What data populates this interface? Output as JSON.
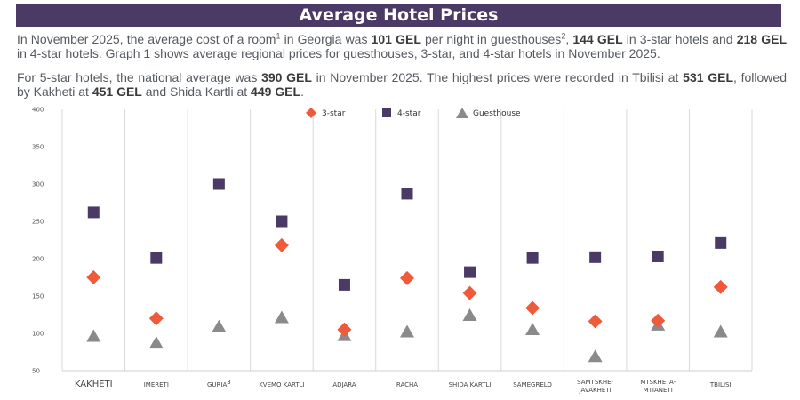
{
  "header": {
    "title": "Average Hotel Prices"
  },
  "text": {
    "p1": {
      "a": "In November 2025, the average cost of a room",
      "sup1": "1",
      "b": " in Georgia was ",
      "v1": "101 GEL",
      "c": " per night in guesthouses",
      "sup2": "2",
      "d": ", ",
      "v2": "144 GEL",
      "e": " in 3-star hotels and ",
      "v3": "218 GEL",
      "f": " in 4-star hotels. Graph 1 shows average regional prices for guesthouses, 3-star, and 4-star hotels in November 2025."
    },
    "p2": {
      "a": "For 5-star hotels, the national average was ",
      "v1": "390 GEL",
      "b": " in November 2025. The highest prices were recorded in Tbilisi at ",
      "v2": "531 GEL",
      "c": ", followed by Kakheti at ",
      "v3": "451 GEL",
      "d": " and Shida Kartli at ",
      "v4": "449 GEL",
      "e": "."
    }
  },
  "chart_data": {
    "type": "scatter",
    "title": "",
    "xlabel": "",
    "ylabel": "",
    "ylim": [
      50,
      400
    ],
    "yticks": [
      50,
      100,
      150,
      200,
      250,
      300,
      350,
      400
    ],
    "grid": "vertical separators",
    "legend_position": "top-center",
    "categories": [
      "KAKHETI",
      "IMERETI",
      "GURIA",
      "KVEMO KARTLI",
      "ADJARA",
      "RACHA",
      "SHIDA KARTLI",
      "SAMEGRELO",
      "SAMTSKHE-JAVAKHETI",
      "MTSKHETA-MTIANETI",
      "TBILISI"
    ],
    "category_footnotes": {
      "GURIA": "3"
    },
    "series": [
      {
        "name": "3-star",
        "marker": "diamond",
        "color": "#ee5a3a",
        "values": [
          175,
          120,
          null,
          218,
          105,
          174,
          154,
          134,
          116,
          117,
          162
        ]
      },
      {
        "name": "4-star",
        "marker": "square",
        "color": "#4b3a66",
        "values": [
          262,
          201,
          300,
          250,
          165,
          287,
          182,
          201,
          202,
          203,
          221
        ]
      },
      {
        "name": "Guesthouse",
        "marker": "triangle",
        "color": "#8a8a8a",
        "values": [
          97,
          88,
          110,
          122,
          98,
          103,
          125,
          106,
          70,
          112,
          103
        ]
      }
    ]
  }
}
